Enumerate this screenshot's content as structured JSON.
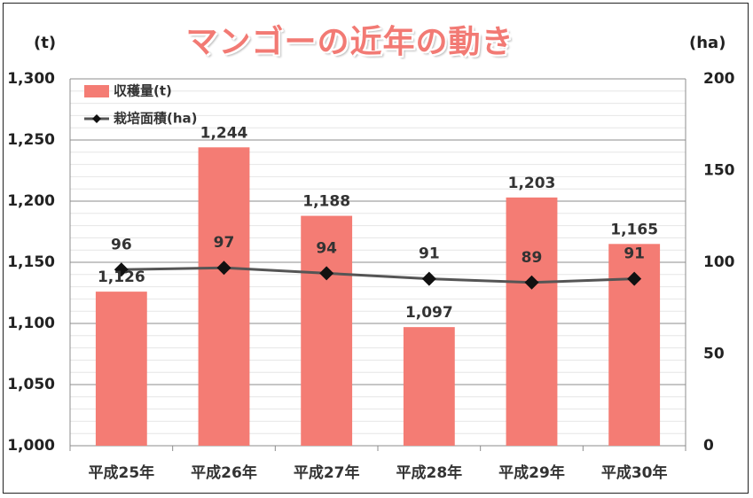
{
  "chart_data": {
    "type": "bar+line",
    "title": "マンゴーの近年の動き",
    "categories": [
      "平成25年",
      "平成26年",
      "平成27年",
      "平成28年",
      "平成29年",
      "平成30年"
    ],
    "series": [
      {
        "name": "収穫量(t)",
        "type": "bar",
        "axis": "left",
        "color": "#f47c74",
        "values": [
          1126,
          1244,
          1188,
          1097,
          1203,
          1165
        ],
        "labels": [
          "1,126",
          "1,244",
          "1,188",
          "1,097",
          "1,203",
          "1,165"
        ]
      },
      {
        "name": "栽培面積(ha)",
        "type": "line",
        "axis": "right",
        "color": "#555555",
        "marker_color": "#111111",
        "values": [
          96,
          97,
          94,
          91,
          89,
          91
        ],
        "labels": [
          "96",
          "97",
          "94",
          "91",
          "89",
          "91"
        ]
      }
    ],
    "y_left": {
      "unit": "(t)",
      "range": [
        1000,
        1300
      ],
      "ticks": [
        1300,
        1250,
        1200,
        1150,
        1100,
        1050,
        1000
      ],
      "tick_labels": [
        "1,300",
        "1,250",
        "1,200",
        "1,150",
        "1,100",
        "1,050",
        "1,000"
      ]
    },
    "y_right": {
      "unit": "(ha)",
      "range": [
        0,
        200
      ],
      "ticks": [
        200,
        150,
        100,
        50,
        0
      ],
      "tick_labels": [
        "200",
        "150",
        "100",
        "50",
        "0"
      ]
    },
    "grid": true,
    "legend_position": "top-left"
  }
}
